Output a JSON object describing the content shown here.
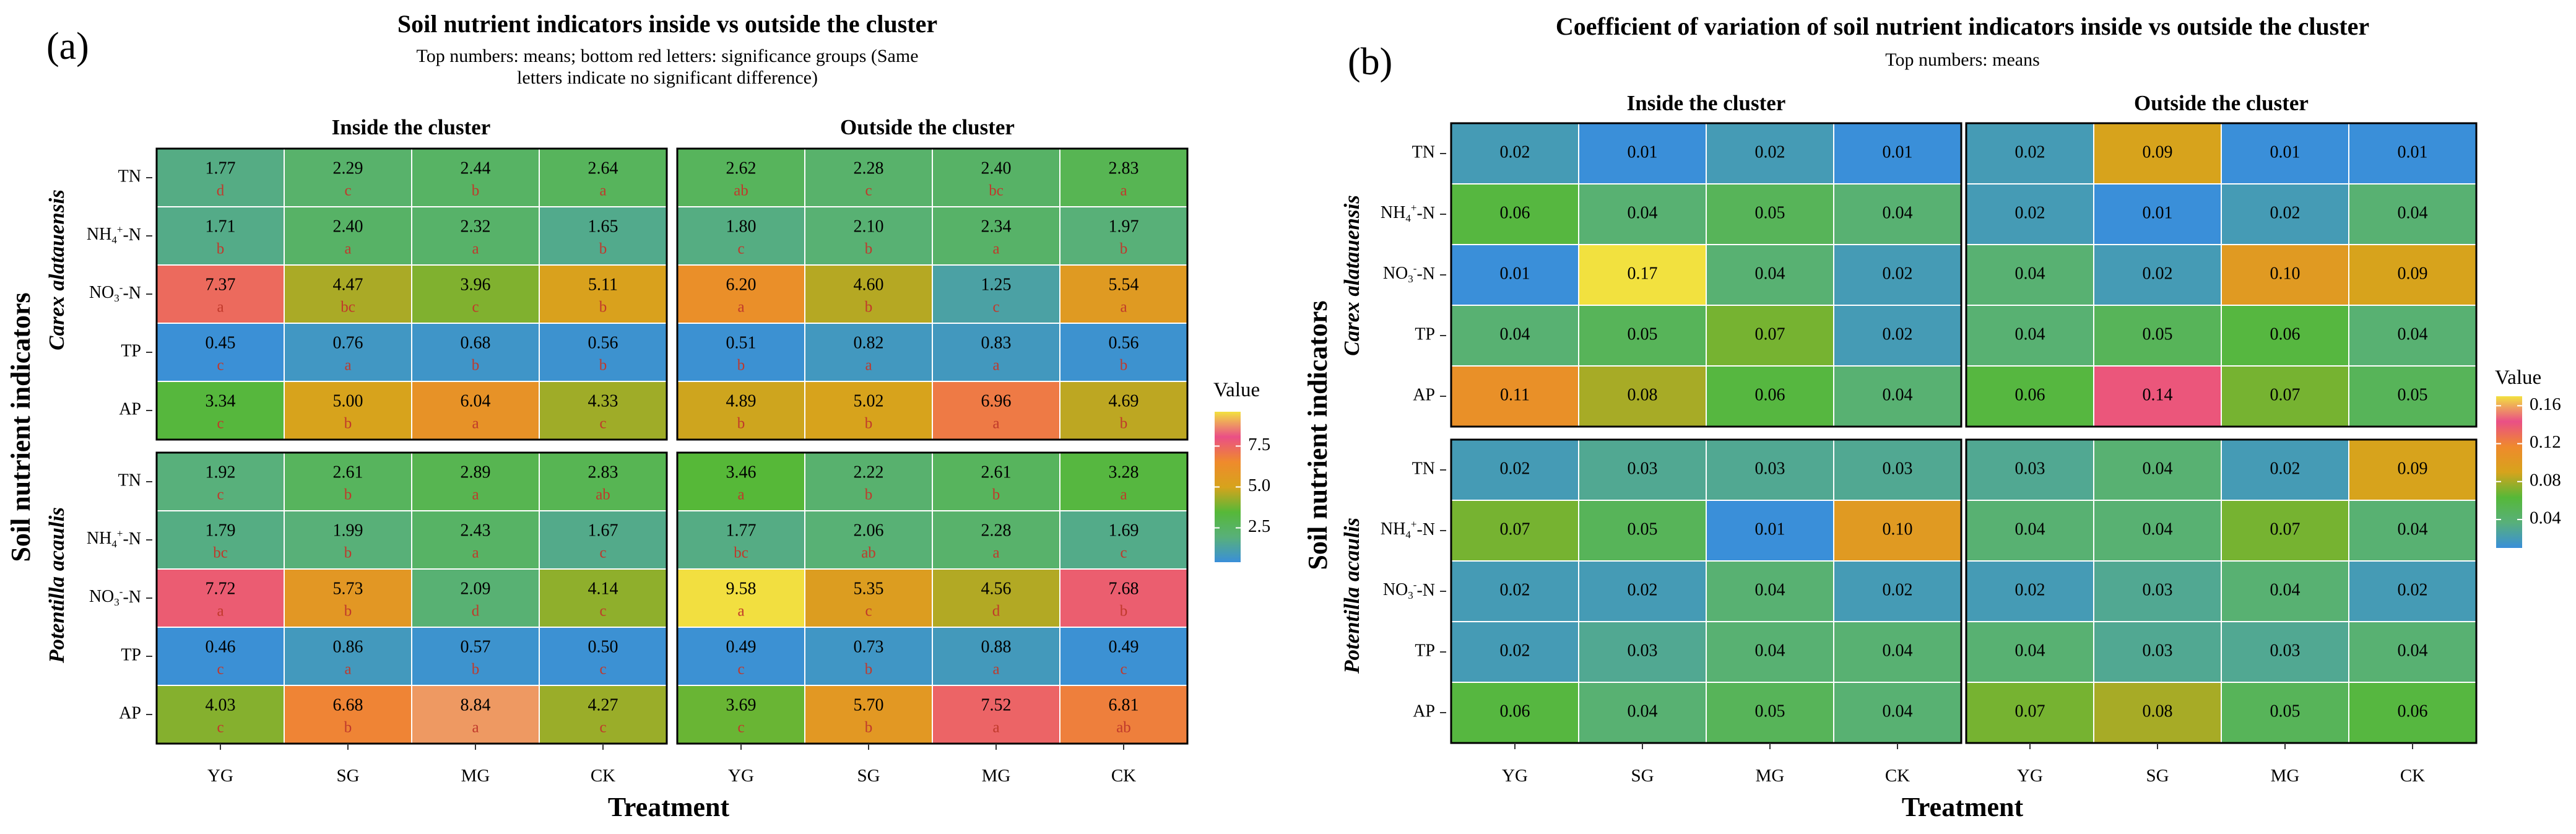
{
  "colors": {
    "scale": [
      "#3a8fd9",
      "#58b07a",
      "#56b838",
      "#d7a31c",
      "#ef8a2c",
      "#ea4f86",
      "#f2e13f"
    ],
    "cell_text_top": "#000000",
    "cell_text_group": "#c0392b",
    "cell_border": "#ffffff"
  },
  "panels": {
    "a": {
      "label": "(a)",
      "title": "Soil nutrient indicators inside vs outside the cluster",
      "subtitle_line1": "Top numbers: means; bottom red letters: significance groups (Same",
      "subtitle_line2": "letters indicate no significant difference)"
    },
    "b": {
      "label": "(b)",
      "title": "Coefficient of variation of soil nutrient indicators inside vs outside the cluster",
      "subtitle_line1": "Top numbers: means"
    }
  },
  "facets": {
    "cols": [
      "Inside the cluster",
      "Outside the cluster"
    ],
    "rows": [
      "Carex alatauensis",
      "Potentilla acaulis"
    ]
  },
  "axes": {
    "xlabel": "Treatment",
    "ylabel": "Soil nutrient indicators",
    "treatments": [
      "YG",
      "SG",
      "MG",
      "CK"
    ],
    "indicators": [
      "TN",
      "NH4+-N",
      "NO3--N",
      "TP",
      "AP"
    ]
  },
  "legend": {
    "a": {
      "title": "Value",
      "ticks": [
        "7.5",
        "5.0",
        "2.5"
      ],
      "tick_values": [
        7.5,
        5.0,
        2.5
      ],
      "range": [
        0.4,
        9.6
      ]
    },
    "b": {
      "title": "Value",
      "ticks": [
        "0.16",
        "0.12",
        "0.08",
        "0.04"
      ],
      "tick_values": [
        0.16,
        0.12,
        0.08,
        0.04
      ],
      "range": [
        0.01,
        0.17
      ]
    }
  },
  "chart_data": [
    {
      "type": "heatmap",
      "panel": "a",
      "title": "Soil nutrient indicators inside vs outside the cluster",
      "xlabel": "Treatment",
      "ylabel": "Soil nutrient indicators",
      "categories": [
        "YG",
        "SG",
        "MG",
        "CK"
      ],
      "rows": [
        "TN",
        "NH4+-N",
        "NO3--N",
        "TP",
        "AP"
      ],
      "facets": [
        {
          "species": "Carex alatauensis",
          "location": "Inside the cluster",
          "values": [
            [
              1.77,
              2.29,
              2.44,
              2.64
            ],
            [
              1.71,
              2.4,
              2.32,
              1.65
            ],
            [
              7.37,
              4.47,
              3.96,
              5.11
            ],
            [
              0.45,
              0.76,
              0.68,
              0.56
            ],
            [
              3.34,
              5.0,
              6.04,
              4.33
            ]
          ],
          "values_text": [
            [
              "1.77",
              "2.29",
              "2.44",
              "2.64"
            ],
            [
              "1.71",
              "2.40",
              "2.32",
              "1.65"
            ],
            [
              "7.37",
              "4.47",
              "3.96",
              "5.11"
            ],
            [
              "0.45",
              "0.76",
              "0.68",
              "0.56"
            ],
            [
              "3.34",
              "5.00",
              "6.04",
              "4.33"
            ]
          ],
          "groups": [
            [
              "d",
              "c",
              "b",
              "a"
            ],
            [
              "b",
              "a",
              "a",
              "b"
            ],
            [
              "a",
              "bc",
              "c",
              "b"
            ],
            [
              "c",
              "a",
              "b",
              "b"
            ],
            [
              "c",
              "b",
              "a",
              "c"
            ]
          ]
        },
        {
          "species": "Carex alatauensis",
          "location": "Outside the cluster",
          "values": [
            [
              2.62,
              2.28,
              2.4,
              2.83
            ],
            [
              1.8,
              2.1,
              2.34,
              1.97
            ],
            [
              6.2,
              4.6,
              1.25,
              5.54
            ],
            [
              0.51,
              0.82,
              0.83,
              0.56
            ],
            [
              4.89,
              5.02,
              6.96,
              4.69
            ]
          ],
          "values_text": [
            [
              "2.62",
              "2.28",
              "2.40",
              "2.83"
            ],
            [
              "1.80",
              "2.10",
              "2.34",
              "1.97"
            ],
            [
              "6.20",
              "4.60",
              "1.25",
              "5.54"
            ],
            [
              "0.51",
              "0.82",
              "0.83",
              "0.56"
            ],
            [
              "4.89",
              "5.02",
              "6.96",
              "4.69"
            ]
          ],
          "groups": [
            [
              "ab",
              "c",
              "bc",
              "a"
            ],
            [
              "c",
              "b",
              "a",
              "b"
            ],
            [
              "a",
              "b",
              "c",
              "a"
            ],
            [
              "b",
              "a",
              "a",
              "b"
            ],
            [
              "b",
              "b",
              "a",
              "b"
            ]
          ]
        },
        {
          "species": "Potentilla acaulis",
          "location": "Inside the cluster",
          "values": [
            [
              1.92,
              2.61,
              2.89,
              2.83
            ],
            [
              1.79,
              1.99,
              2.43,
              1.67
            ],
            [
              7.72,
              5.73,
              2.09,
              4.14
            ],
            [
              0.46,
              0.86,
              0.57,
              0.5
            ],
            [
              4.03,
              6.68,
              8.84,
              4.27
            ]
          ],
          "values_text": [
            [
              "1.92",
              "2.61",
              "2.89",
              "2.83"
            ],
            [
              "1.79",
              "1.99",
              "2.43",
              "1.67"
            ],
            [
              "7.72",
              "5.73",
              "2.09",
              "4.14"
            ],
            [
              "0.46",
              "0.86",
              "0.57",
              "0.50"
            ],
            [
              "4.03",
              "6.68",
              "8.84",
              "4.27"
            ]
          ],
          "groups": [
            [
              "c",
              "b",
              "a",
              "ab"
            ],
            [
              "bc",
              "b",
              "a",
              "c"
            ],
            [
              "a",
              "b",
              "d",
              "c"
            ],
            [
              "c",
              "a",
              "b",
              "c"
            ],
            [
              "c",
              "b",
              "a",
              "c"
            ]
          ]
        },
        {
          "species": "Potentilla acaulis",
          "location": "Outside the cluster",
          "values": [
            [
              3.46,
              2.22,
              2.61,
              3.28
            ],
            [
              1.77,
              2.06,
              2.28,
              1.69
            ],
            [
              9.58,
              5.35,
              4.56,
              7.68
            ],
            [
              0.49,
              0.73,
              0.88,
              0.49
            ],
            [
              3.69,
              5.7,
              7.52,
              6.81
            ]
          ],
          "values_text": [
            [
              "3.46",
              "2.22",
              "2.61",
              "3.28"
            ],
            [
              "1.77",
              "2.06",
              "2.28",
              "1.69"
            ],
            [
              "9.58",
              "5.35",
              "4.56",
              "7.68"
            ],
            [
              "0.49",
              "0.73",
              "0.88",
              "0.49"
            ],
            [
              "3.69",
              "5.70",
              "7.52",
              "6.81"
            ]
          ],
          "groups": [
            [
              "a",
              "b",
              "b",
              "a"
            ],
            [
              "bc",
              "ab",
              "a",
              "c"
            ],
            [
              "a",
              "c",
              "d",
              "b"
            ],
            [
              "c",
              "b",
              "a",
              "c"
            ],
            [
              "c",
              "b",
              "a",
              "ab"
            ]
          ]
        }
      ]
    },
    {
      "type": "heatmap",
      "panel": "b",
      "title": "Coefficient of variation of soil nutrient indicators inside vs outside the cluster",
      "xlabel": "Treatment",
      "ylabel": "Soil nutrient indicators",
      "categories": [
        "YG",
        "SG",
        "MG",
        "CK"
      ],
      "rows": [
        "TN",
        "NH4+-N",
        "NO3--N",
        "TP",
        "AP"
      ],
      "facets": [
        {
          "species": "Carex alatauensis",
          "location": "Inside the cluster",
          "values": [
            [
              0.02,
              0.01,
              0.02,
              0.01
            ],
            [
              0.06,
              0.04,
              0.05,
              0.04
            ],
            [
              0.01,
              0.17,
              0.04,
              0.02
            ],
            [
              0.04,
              0.05,
              0.07,
              0.02
            ],
            [
              0.11,
              0.08,
              0.06,
              0.04
            ]
          ],
          "values_text": [
            [
              "0.02",
              "0.01",
              "0.02",
              "0.01"
            ],
            [
              "0.06",
              "0.04",
              "0.05",
              "0.04"
            ],
            [
              "0.01",
              "0.17",
              "0.04",
              "0.02"
            ],
            [
              "0.04",
              "0.05",
              "0.07",
              "0.02"
            ],
            [
              "0.11",
              "0.08",
              "0.06",
              "0.04"
            ]
          ]
        },
        {
          "species": "Carex alatauensis",
          "location": "Outside the cluster",
          "values": [
            [
              0.02,
              0.09,
              0.01,
              0.01
            ],
            [
              0.02,
              0.01,
              0.02,
              0.04
            ],
            [
              0.04,
              0.02,
              0.1,
              0.09
            ],
            [
              0.04,
              0.05,
              0.06,
              0.04
            ],
            [
              0.06,
              0.14,
              0.07,
              0.05
            ]
          ],
          "values_text": [
            [
              "0.02",
              "0.09",
              "0.01",
              "0.01"
            ],
            [
              "0.02",
              "0.01",
              "0.02",
              "0.04"
            ],
            [
              "0.04",
              "0.02",
              "0.10",
              "0.09"
            ],
            [
              "0.04",
              "0.05",
              "0.06",
              "0.04"
            ],
            [
              "0.06",
              "0.14",
              "0.07",
              "0.05"
            ]
          ]
        },
        {
          "species": "Potentilla acaulis",
          "location": "Inside the cluster",
          "values": [
            [
              0.02,
              0.03,
              0.03,
              0.03
            ],
            [
              0.07,
              0.05,
              0.01,
              0.1
            ],
            [
              0.02,
              0.02,
              0.04,
              0.02
            ],
            [
              0.02,
              0.03,
              0.04,
              0.04
            ],
            [
              0.06,
              0.04,
              0.05,
              0.04
            ]
          ],
          "values_text": [
            [
              "0.02",
              "0.03",
              "0.03",
              "0.03"
            ],
            [
              "0.07",
              "0.05",
              "0.01",
              "0.10"
            ],
            [
              "0.02",
              "0.02",
              "0.04",
              "0.02"
            ],
            [
              "0.02",
              "0.03",
              "0.04",
              "0.04"
            ],
            [
              "0.06",
              "0.04",
              "0.05",
              "0.04"
            ]
          ]
        },
        {
          "species": "Potentilla acaulis",
          "location": "Outside the cluster",
          "values": [
            [
              0.03,
              0.04,
              0.02,
              0.09
            ],
            [
              0.04,
              0.04,
              0.07,
              0.04
            ],
            [
              0.02,
              0.03,
              0.04,
              0.02
            ],
            [
              0.04,
              0.03,
              0.03,
              0.04
            ],
            [
              0.07,
              0.08,
              0.05,
              0.06
            ]
          ],
          "values_text": [
            [
              "0.03",
              "0.04",
              "0.02",
              "0.09"
            ],
            [
              "0.04",
              "0.04",
              "0.07",
              "0.04"
            ],
            [
              "0.02",
              "0.03",
              "0.04",
              "0.02"
            ],
            [
              "0.04",
              "0.03",
              "0.03",
              "0.04"
            ],
            [
              "0.07",
              "0.08",
              "0.05",
              "0.06"
            ]
          ]
        }
      ]
    }
  ]
}
